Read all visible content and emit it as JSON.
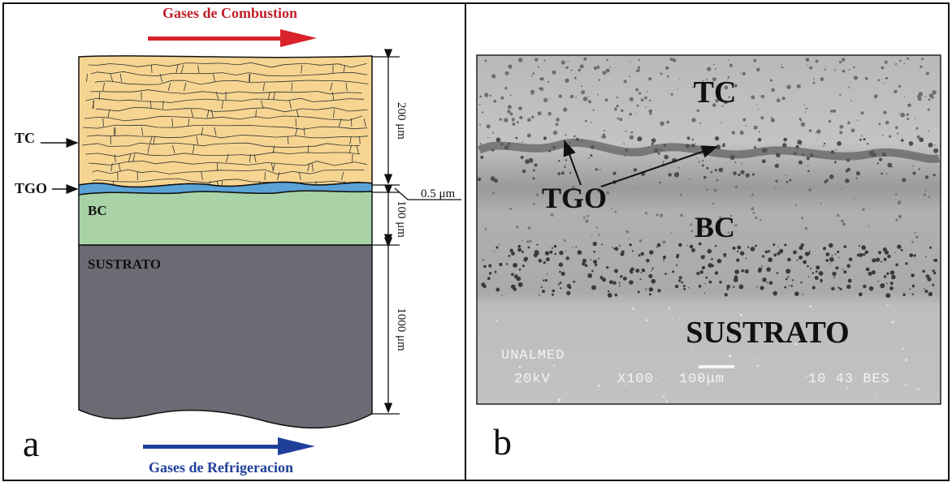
{
  "panel_a": {
    "top_flow": "Gases de Combustion",
    "bottom_flow": "Gases de Refrigeracion",
    "layers": {
      "tc": "TC",
      "tgo": "TGO",
      "bc": "BC",
      "substrate": "SUSTRATO"
    },
    "dimensions": {
      "tc": "200 μm",
      "tgo": "0.5 μm",
      "bc": "100 μm",
      "substrate": "1000 μm"
    },
    "panel_label": "a"
  },
  "panel_b": {
    "labels": {
      "tc": "TC",
      "tgo": "TGO",
      "bc": "BC",
      "substrate": "SUSTRATO"
    },
    "sem_info": {
      "lab": "UNALMED",
      "voltage": "20kV",
      "magnification": "X100",
      "scale": "100μm",
      "code": "10 43 BES"
    },
    "panel_label": "b"
  }
}
